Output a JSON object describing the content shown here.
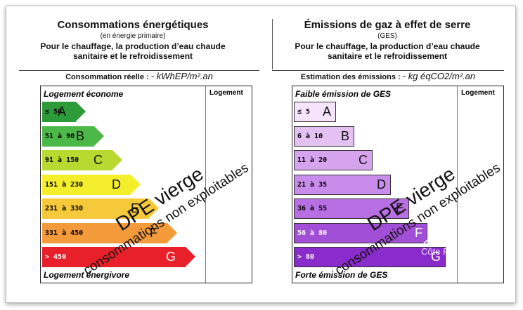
{
  "energy": {
    "title": "Consommations énergétiques",
    "subtitle": "(en énergie primaire)",
    "desc_line1": "Pour le chauffage, la production d’eau chaude",
    "desc_line2": "sanitaire et le refroidissement",
    "measure_label": "Consommation réelle : ",
    "measure_value": "- kWhEP/m².an",
    "top_label": "Logement économe",
    "bottom_label": "Logement énergivore",
    "column_header": "Logement",
    "classes": [
      {
        "range": "≤ 50",
        "letter": "A",
        "color": "#2e9b3b"
      },
      {
        "range": "51 à 90",
        "letter": "B",
        "color": "#4cb848"
      },
      {
        "range": "91 à 150",
        "letter": "C",
        "color": "#b8d92f"
      },
      {
        "range": "151 à 230",
        "letter": "D",
        "color": "#f4ee2c"
      },
      {
        "range": "231 à 330",
        "letter": "E",
        "color": "#f6c93a"
      },
      {
        "range": "331 à 450",
        "letter": "F",
        "color": "#f39a3a"
      },
      {
        "range": "> 450",
        "letter": "G",
        "color": "#e8202a"
      }
    ]
  },
  "ges": {
    "title": "Émissions de gaz à effet de serre",
    "subtitle": "(GES)",
    "desc_line1": "Pour le chauffage, la production d’eau chaude",
    "desc_line2": "sanitaire et le refroidissement",
    "measure_label": "Estimation des émissions : ",
    "measure_value": "- kg éqCO2/m².an",
    "top_label": "Faible émission de GES",
    "bottom_label": "Forte émission de GES",
    "column_header": "Logement",
    "classes": [
      {
        "range": "≤ 5",
        "letter": "A",
        "color": "#f5e4fb"
      },
      {
        "range": "6 à 10",
        "letter": "B",
        "color": "#e4c1f3"
      },
      {
        "range": "11 à 20",
        "letter": "C",
        "color": "#d6a4ef"
      },
      {
        "range": "21 à 35",
        "letter": "D",
        "color": "#c98ceb"
      },
      {
        "range": "36 à 55",
        "letter": "E",
        "color": "#b86fe3"
      },
      {
        "range": "56 à 80",
        "letter": "F",
        "color": "#a24fd8"
      },
      {
        "range": "> 80",
        "letter": "G",
        "color": "#8a2ccb"
      }
    ]
  },
  "stamp": {
    "line1": "DPE vierge",
    "line2": "consommations non exploitables"
  },
  "watermark": {
    "text": "Côte F"
  }
}
